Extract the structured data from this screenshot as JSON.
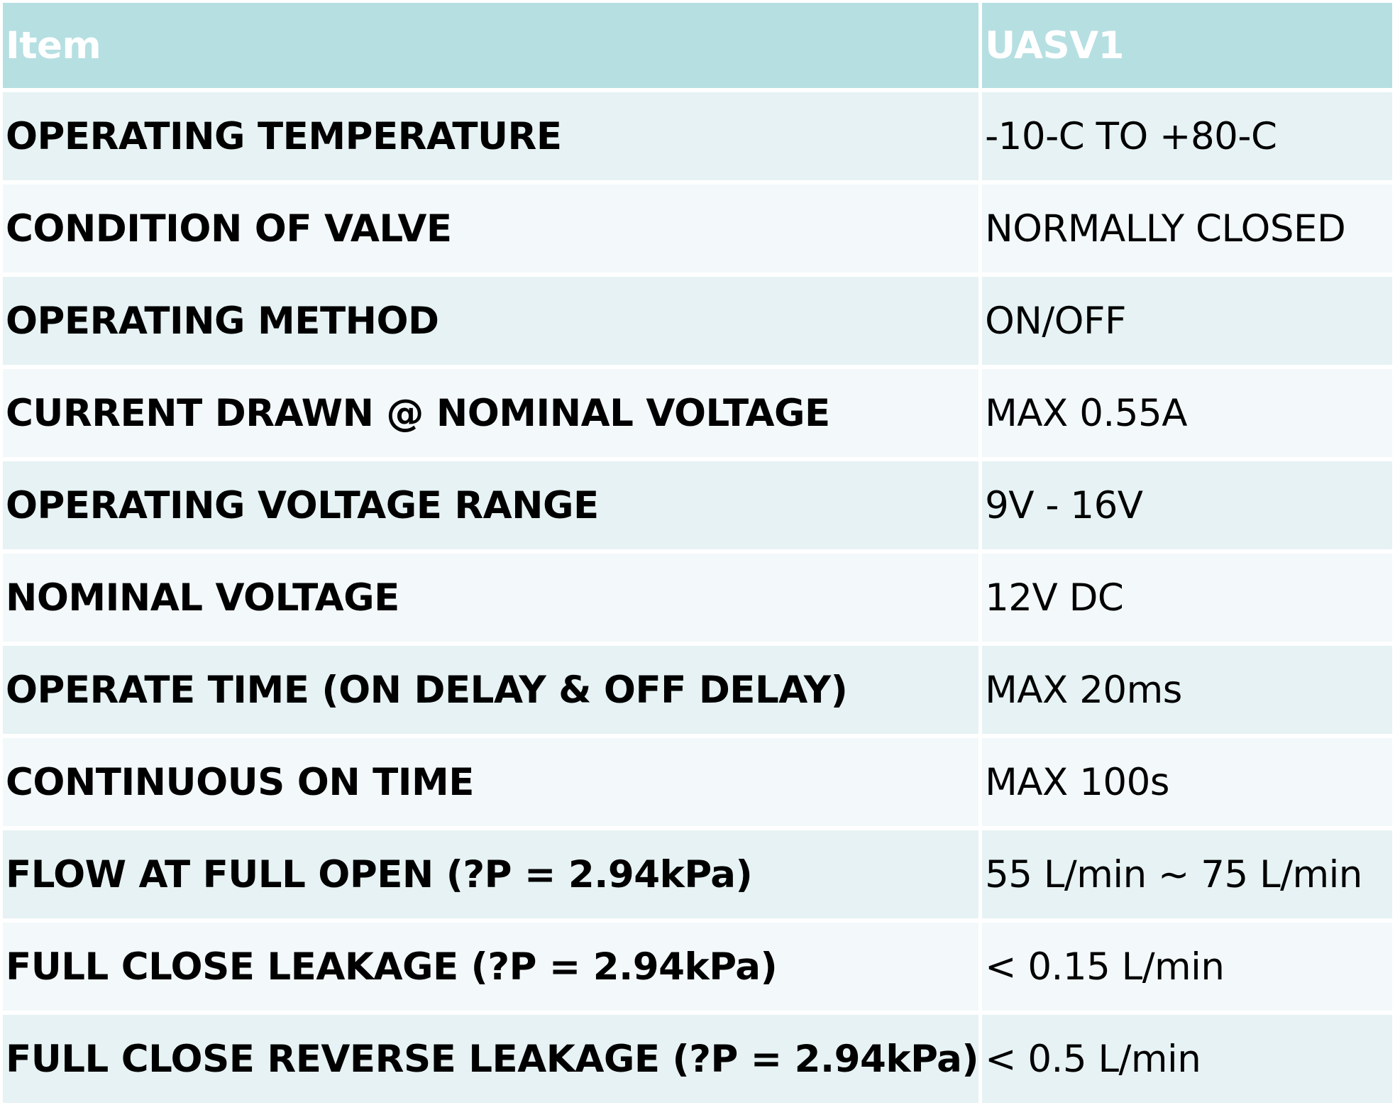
{
  "table": {
    "headers": {
      "item": "Item",
      "value": "UASV1"
    },
    "rows": [
      {
        "item": "OPERATING TEMPERATURE",
        "value": "-10-C TO +80-C"
      },
      {
        "item": "CONDITION OF VALVE",
        "value": "NORMALLY CLOSED"
      },
      {
        "item": "OPERATING METHOD",
        "value": "ON/OFF"
      },
      {
        "item": "CURRENT DRAWN @ NOMINAL VOLTAGE",
        "value": "MAX 0.55A"
      },
      {
        "item": "OPERATING VOLTAGE RANGE",
        "value": "9V - 16V"
      },
      {
        "item": "NOMINAL VOLTAGE",
        "value": "12V DC"
      },
      {
        "item": "OPERATE TIME (ON DELAY & OFF DELAY)",
        "value": "MAX 20ms"
      },
      {
        "item": "CONTINUOUS ON TIME",
        "value": "MAX 100s"
      },
      {
        "item": "FLOW AT FULL OPEN (?P = 2.94kPa)",
        "value": "55 L/min  ~ 75 L/min"
      },
      {
        "item": "FULL CLOSE LEAKAGE  (?P = 2.94kPa)",
        "value": "< 0.15 L/min"
      },
      {
        "item": "FULL CLOSE REVERSE LEAKAGE  (?P = 2.94kPa)",
        "value": "< 0.5 L/min"
      }
    ]
  },
  "colors": {
    "header_bg": "#b6dfe2",
    "header_text": "#ffffff",
    "row_band_a": "#e6f2f3",
    "row_band_b": "#f3f8fa",
    "body_text": "#000000"
  }
}
